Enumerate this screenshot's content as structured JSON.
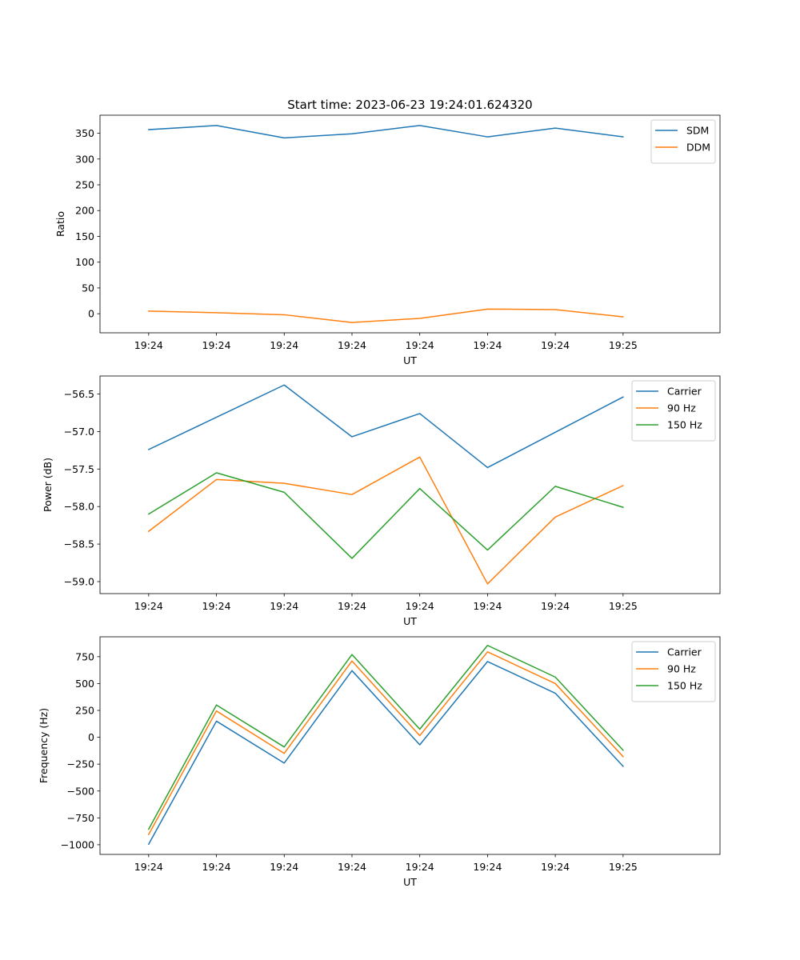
{
  "figure": {
    "title": "Start time: 2023-06-23 19:24:01.624320"
  },
  "chart_data": [
    {
      "type": "line",
      "title": "Start time: 2023-06-23 19:24:01.624320",
      "xlabel": "UT",
      "ylabel": "Ratio",
      "x_tick_labels": [
        "19:24",
        "19:24",
        "19:24",
        "19:24",
        "19:24",
        "19:24",
        "19:24",
        "19:25"
      ],
      "x_index": [
        0,
        1,
        2,
        3,
        4,
        5,
        6,
        7
      ],
      "xlim": [
        -0.718,
        8.43
      ],
      "ylim": [
        -37,
        385
      ],
      "yticks": [
        0,
        50,
        100,
        150,
        200,
        250,
        300,
        350
      ],
      "grid": false,
      "legend_position": "upper right",
      "series": [
        {
          "name": "SDM",
          "color": "#1f77b4",
          "values": [
            357,
            365,
            341,
            349,
            365,
            343,
            360,
            343
          ]
        },
        {
          "name": "DDM",
          "color": "#ff7f0e",
          "values": [
            5,
            2,
            -2,
            -17,
            -9,
            9,
            8,
            -6
          ]
        }
      ]
    },
    {
      "type": "line",
      "title": "",
      "xlabel": "UT",
      "ylabel": "Power (dB)",
      "x_tick_labels": [
        "19:24",
        "19:24",
        "19:24",
        "19:24",
        "19:24",
        "19:24",
        "19:24",
        "19:25"
      ],
      "x_index": [
        0,
        1,
        2,
        3,
        4,
        5,
        6,
        7
      ],
      "xlim": [
        -0.718,
        8.43
      ],
      "ylim": [
        -59.16,
        -56.26
      ],
      "yticks": [
        -59.0,
        -58.5,
        -58.0,
        -57.5,
        -57.0,
        -56.5
      ],
      "ytick_labels": [
        "−59.0",
        "−58.5",
        "−58.0",
        "−57.5",
        "−57.0",
        "−56.5"
      ],
      "grid": false,
      "legend_position": "upper right",
      "series": [
        {
          "name": "Carrier",
          "color": "#1f77b4",
          "values": [
            -57.24,
            -56.81,
            -56.38,
            -57.07,
            -56.76,
            -57.48,
            -57.01,
            -56.54
          ]
        },
        {
          "name": "90 Hz",
          "color": "#ff7f0e",
          "values": [
            -58.33,
            -57.64,
            -57.69,
            -57.84,
            -57.34,
            -59.03,
            -58.14,
            -57.72
          ]
        },
        {
          "name": "150 Hz",
          "color": "#2ca02c",
          "values": [
            -58.1,
            -57.55,
            -57.81,
            -58.69,
            -57.76,
            -58.58,
            -57.73,
            -58.01
          ]
        }
      ]
    },
    {
      "type": "line",
      "title": "",
      "xlabel": "UT",
      "ylabel": "Frequency (Hz)",
      "x_tick_labels": [
        "19:24",
        "19:24",
        "19:24",
        "19:24",
        "19:24",
        "19:24",
        "19:24",
        "19:25"
      ],
      "x_index": [
        0,
        1,
        2,
        3,
        4,
        5,
        6,
        7
      ],
      "xlim": [
        -0.718,
        8.43
      ],
      "ylim": [
        -1090,
        935
      ],
      "yticks": [
        -1000,
        -750,
        -500,
        -250,
        0,
        250,
        500,
        750
      ],
      "ytick_labels": [
        "−1000",
        "−750",
        "−500",
        "−250",
        "0",
        "250",
        "500",
        "750"
      ],
      "grid": false,
      "legend_position": "upper right",
      "series": [
        {
          "name": "Carrier",
          "color": "#1f77b4",
          "values": [
            -995,
            150,
            -240,
            620,
            -70,
            705,
            410,
            -270
          ]
        },
        {
          "name": "90 Hz",
          "color": "#ff7f0e",
          "values": [
            -905,
            245,
            -150,
            710,
            15,
            795,
            500,
            -180
          ]
        },
        {
          "name": "150 Hz",
          "color": "#2ca02c",
          "values": [
            -855,
            300,
            -90,
            770,
            75,
            855,
            560,
            -120
          ]
        }
      ]
    }
  ]
}
